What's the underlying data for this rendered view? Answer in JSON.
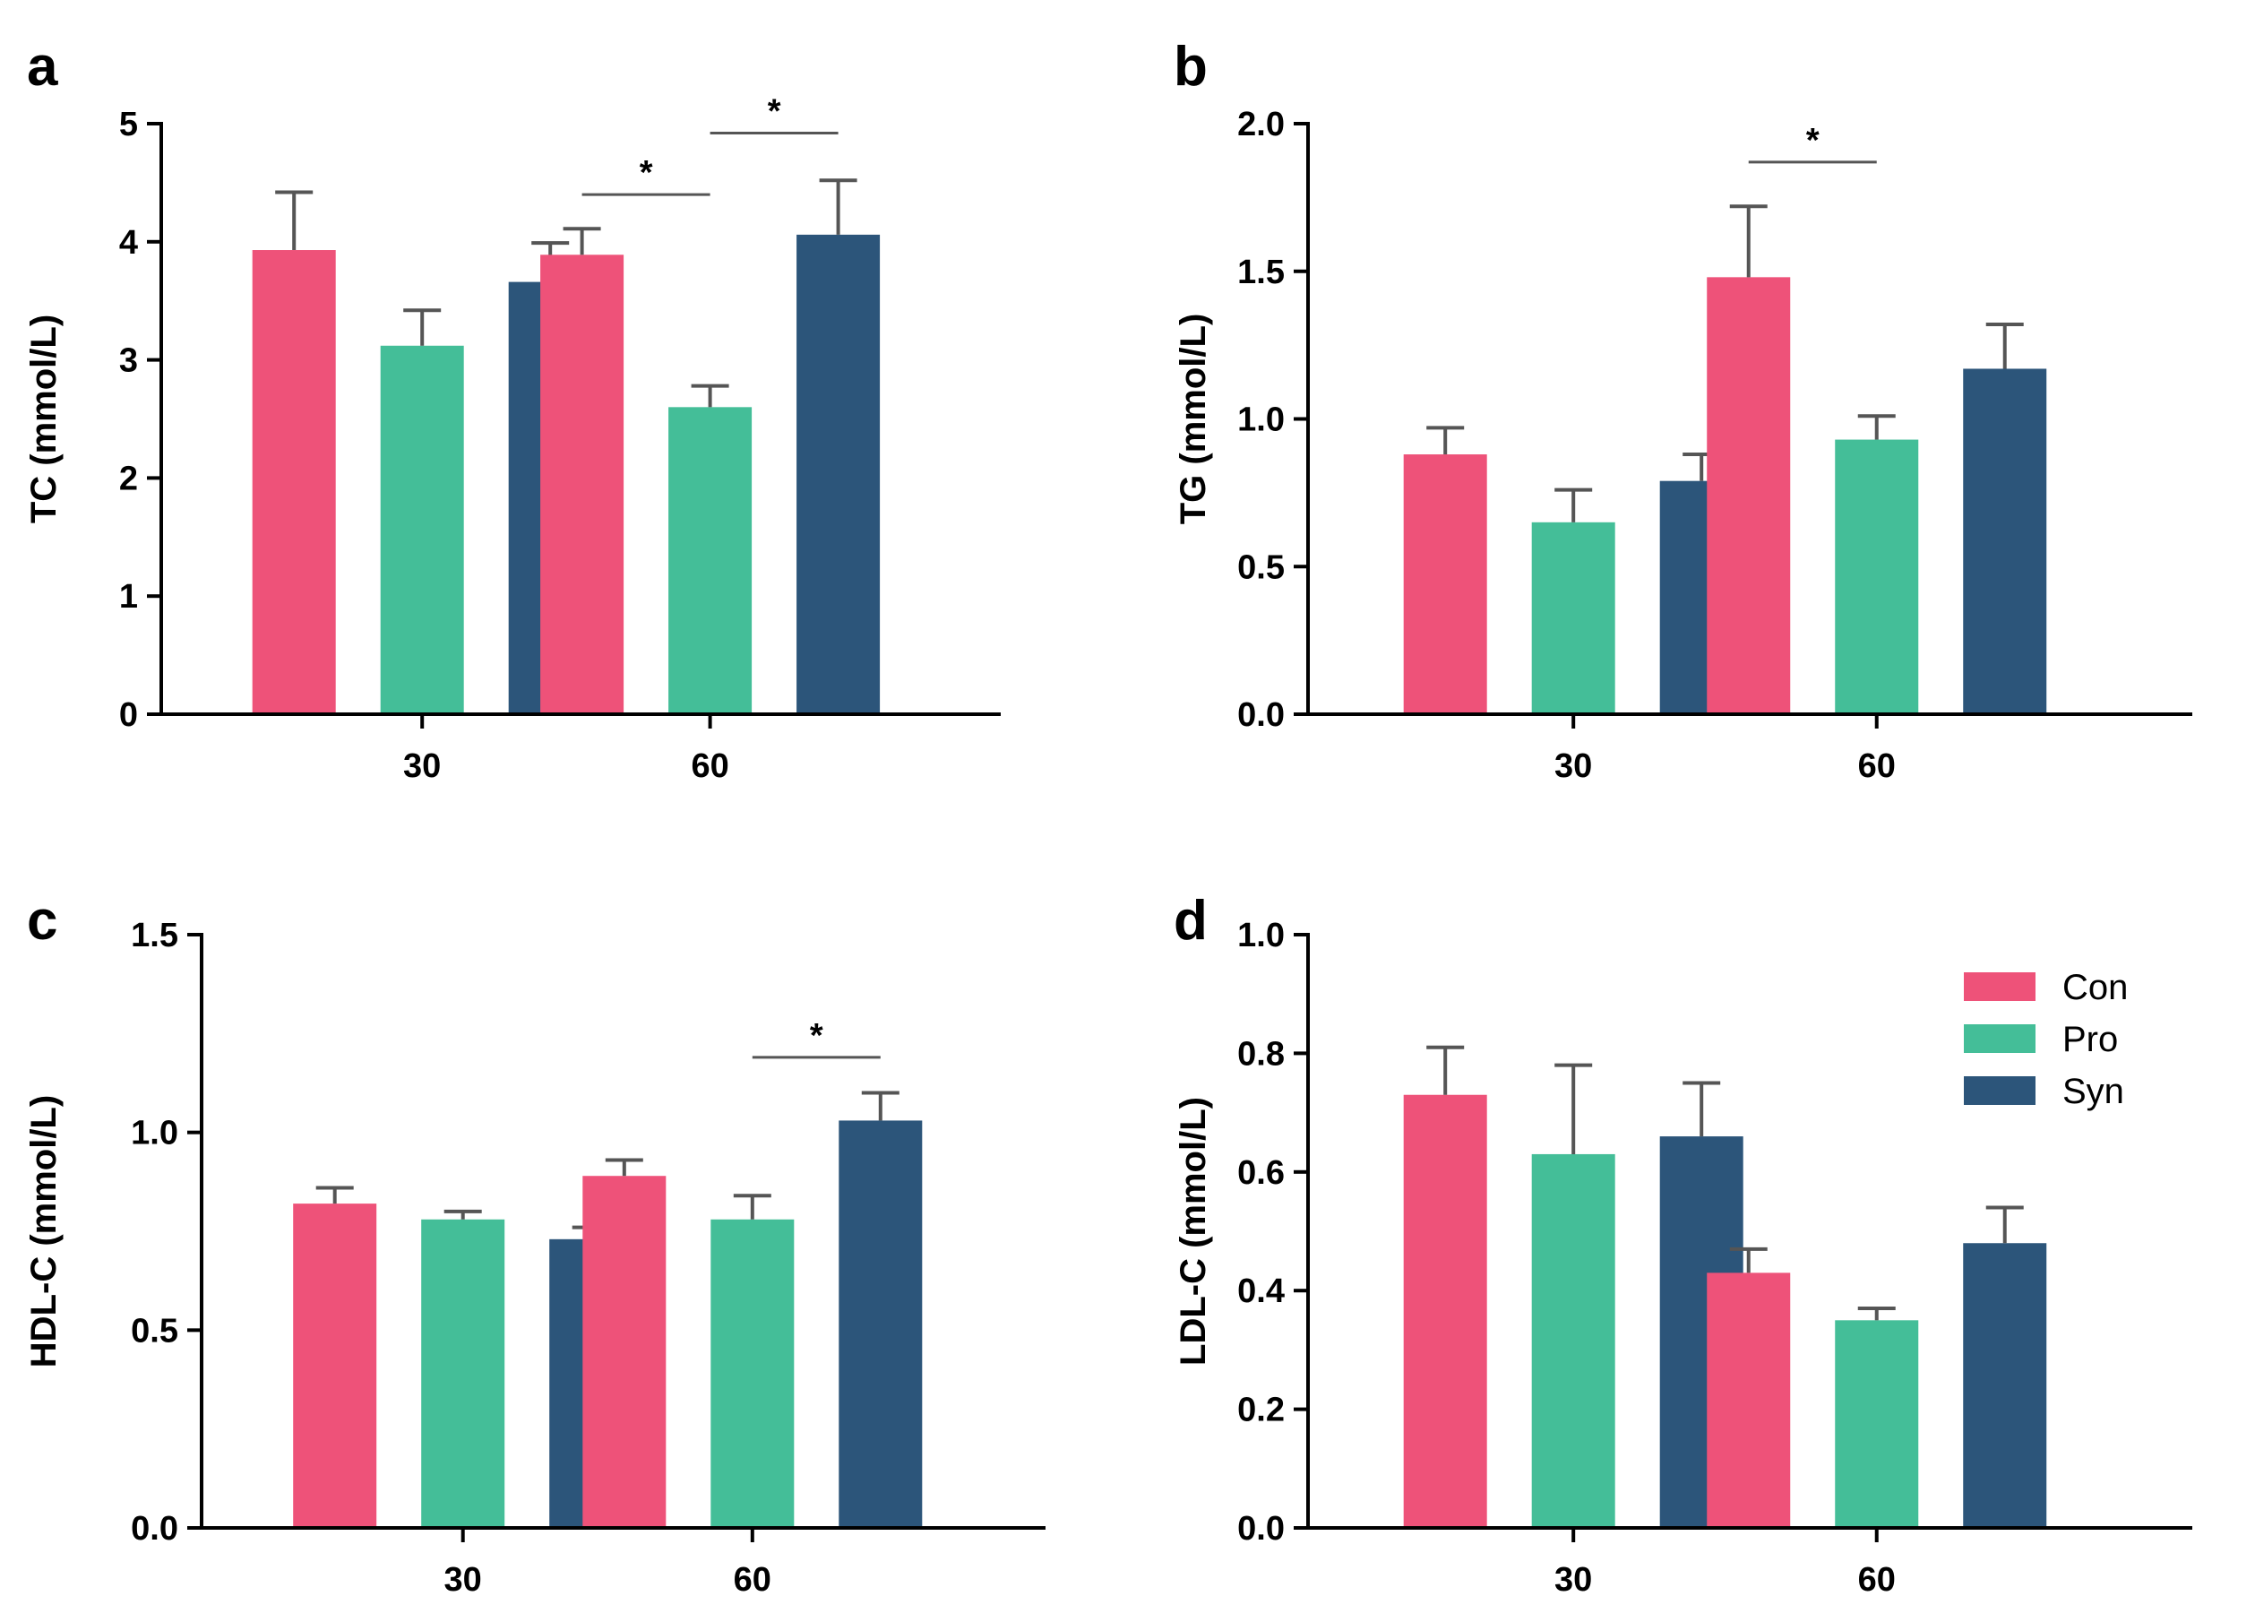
{
  "colors": {
    "Con": "#EE5279",
    "Pro": "#44BE98",
    "Syn": "#2C557A",
    "axis": "#000000",
    "error": "#555555",
    "bracket": "#555555"
  },
  "legend": {
    "entries": [
      {
        "name": "Con",
        "color_key": "Con"
      },
      {
        "name": "Pro",
        "color_key": "Pro"
      },
      {
        "name": "Syn",
        "color_key": "Syn"
      }
    ]
  },
  "chart_data": [
    {
      "panel": "a",
      "type": "bar",
      "title": "",
      "xlabel": "",
      "ylabel": "TC (mmol/L)",
      "ylim": [
        0,
        5
      ],
      "yticks": [
        "0",
        "1",
        "2",
        "3",
        "4",
        "5"
      ],
      "ytick_values": [
        0,
        1,
        2,
        3,
        4,
        5
      ],
      "categories": [
        "30",
        "60"
      ],
      "series": [
        {
          "name": "Con",
          "values": [
            3.93,
            3.89
          ],
          "errors": [
            0.49,
            0.22
          ]
        },
        {
          "name": "Pro",
          "values": [
            3.12,
            2.6
          ],
          "errors": [
            0.3,
            0.18
          ]
        },
        {
          "name": "Syn",
          "values": [
            3.66,
            4.06
          ],
          "errors": [
            0.33,
            0.46
          ]
        }
      ],
      "significance": [
        {
          "category": 1,
          "from": 0,
          "to": 1,
          "y": 4.4,
          "label": "*"
        },
        {
          "category": 1,
          "from": 1,
          "to": 2,
          "y": 4.92,
          "label": "*"
        }
      ]
    },
    {
      "panel": "b",
      "type": "bar",
      "title": "",
      "xlabel": "",
      "ylabel": "TG (mmol/L)",
      "ylim": [
        0,
        2.0
      ],
      "yticks": [
        "0.0",
        "0.5",
        "1.0",
        "1.5",
        "2.0"
      ],
      "ytick_values": [
        0,
        0.5,
        1.0,
        1.5,
        2.0
      ],
      "categories": [
        "30",
        "60"
      ],
      "series": [
        {
          "name": "Con",
          "values": [
            0.88,
            1.48
          ],
          "errors": [
            0.09,
            0.24
          ]
        },
        {
          "name": "Pro",
          "values": [
            0.65,
            0.93
          ],
          "errors": [
            0.11,
            0.08
          ]
        },
        {
          "name": "Syn",
          "values": [
            0.79,
            1.17
          ],
          "errors": [
            0.09,
            0.15
          ]
        }
      ],
      "significance": [
        {
          "category": 1,
          "from": 0,
          "to": 1,
          "y": 1.87,
          "label": "*"
        }
      ]
    },
    {
      "panel": "c",
      "type": "bar",
      "title": "",
      "xlabel": "",
      "ylabel": "HDL-C (mmol/L)",
      "ylim": [
        0,
        1.5
      ],
      "yticks": [
        "0.0",
        "0.5",
        "1.0",
        "1.5"
      ],
      "ytick_values": [
        0,
        0.5,
        1.0,
        1.5
      ],
      "categories": [
        "30",
        "60"
      ],
      "series": [
        {
          "name": "Con",
          "values": [
            0.82,
            0.89
          ],
          "errors": [
            0.04,
            0.04
          ]
        },
        {
          "name": "Pro",
          "values": [
            0.78,
            0.78
          ],
          "errors": [
            0.02,
            0.06
          ]
        },
        {
          "name": "Syn",
          "values": [
            0.73,
            1.03
          ],
          "errors": [
            0.03,
            0.07
          ]
        }
      ],
      "significance": [
        {
          "category": 1,
          "from": 1,
          "to": 2,
          "y": 1.19,
          "label": "*"
        }
      ]
    },
    {
      "panel": "d",
      "type": "bar",
      "title": "",
      "xlabel": "",
      "ylabel": "LDL-C (mmol/L)",
      "ylim": [
        0,
        1.0
      ],
      "yticks": [
        "0.0",
        "0.2",
        "0.4",
        "0.6",
        "0.8",
        "1.0"
      ],
      "ytick_values": [
        0,
        0.2,
        0.4,
        0.6,
        0.8,
        1.0
      ],
      "categories": [
        "30",
        "60"
      ],
      "series": [
        {
          "name": "Con",
          "values": [
            0.73,
            0.43
          ],
          "errors": [
            0.08,
            0.04
          ]
        },
        {
          "name": "Pro",
          "values": [
            0.63,
            0.35
          ],
          "errors": [
            0.15,
            0.02
          ]
        },
        {
          "name": "Syn",
          "values": [
            0.66,
            0.48
          ],
          "errors": [
            0.09,
            0.06
          ]
        }
      ],
      "significance": [],
      "legend": "top-right"
    }
  ]
}
